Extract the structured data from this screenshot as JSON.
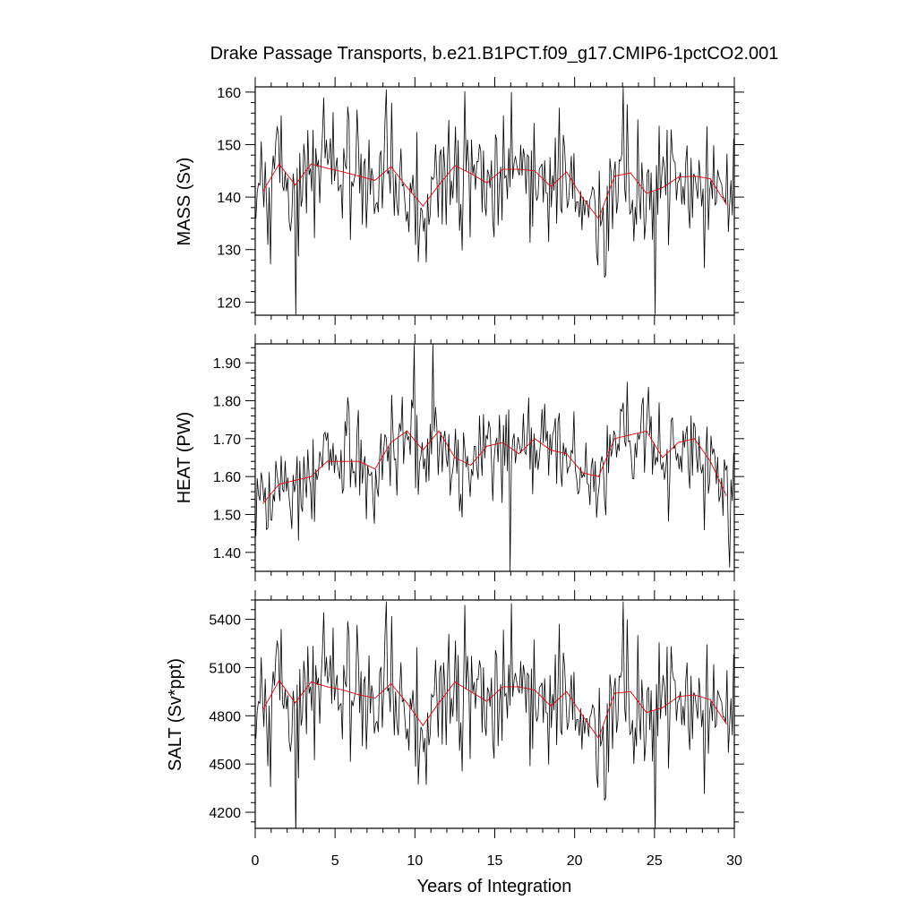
{
  "chart_data": {
    "type": "line",
    "title": "Drake Passage Transports, b.e21.B1PCT.f09_g17.CMIP6-1pctCO2.001",
    "xlabel": "Years of Integration",
    "xlim": [
      0,
      30
    ],
    "xticks": [
      0,
      5,
      10,
      15,
      20,
      25,
      30
    ],
    "xtick_labels": [
      "0",
      "5",
      "10",
      "15",
      "20",
      "25",
      "30"
    ],
    "colors": {
      "monthly": "#000000",
      "annual_mean": "#e8000b"
    },
    "panels": [
      {
        "id": "mass",
        "ylabel": "MASS (Sv)",
        "ylim": [
          117.5,
          161
        ],
        "yticks": [
          120,
          130,
          140,
          150,
          160
        ],
        "ytick_labels": [
          "120",
          "130",
          "140",
          "150",
          "160"
        ],
        "annual_mean": [
          141.2,
          146.3,
          142.3,
          146.3,
          145.5,
          144.8,
          144.0,
          143.2,
          145.8,
          141.9,
          138.3,
          142.3,
          146.0,
          144.5,
          142.7,
          145.3,
          145.3,
          145.0,
          142.0,
          144.8,
          139.8,
          135.9,
          144.0,
          144.6,
          140.7,
          141.8,
          143.8,
          144.0,
          143.5,
          138.6
        ],
        "monthly_stats": {
          "mean": 142.5,
          "amplitude": 9.0
        },
        "monthly_extremes": [
          {
            "x": 2.5,
            "y": 117.3
          },
          {
            "x": 8.2,
            "y": 160.5
          },
          {
            "x": 25.0,
            "y": 117.6
          },
          {
            "x": 16.0,
            "y": 160.0
          }
        ]
      },
      {
        "id": "heat",
        "ylabel": "HEAT (PW)",
        "ylim": [
          1.35,
          1.95
        ],
        "yticks": [
          1.4,
          1.5,
          1.6,
          1.7,
          1.8,
          1.9
        ],
        "ytick_labels": [
          "1.40",
          "1.50",
          "1.60",
          "1.70",
          "1.80",
          "1.90"
        ],
        "annual_mean": [
          1.53,
          1.58,
          1.59,
          1.6,
          1.64,
          1.64,
          1.64,
          1.62,
          1.69,
          1.72,
          1.67,
          1.72,
          1.65,
          1.63,
          1.68,
          1.69,
          1.66,
          1.7,
          1.67,
          1.66,
          1.61,
          1.6,
          1.7,
          1.71,
          1.72,
          1.65,
          1.69,
          1.7,
          1.64,
          1.55
        ],
        "monthly_stats": {
          "mean": 1.65,
          "amplitude": 0.12
        },
        "monthly_extremes": [
          {
            "x": 9.9,
            "y": 1.95
          },
          {
            "x": 11.1,
            "y": 1.95
          },
          {
            "x": 15.9,
            "y": 1.35
          },
          {
            "x": 29.7,
            "y": 1.36
          }
        ]
      },
      {
        "id": "salt",
        "ylabel": "SALT (Sv*ppt)",
        "ylim": [
          4100,
          5520
        ],
        "yticks": [
          4200,
          4500,
          4800,
          5100,
          5400
        ],
        "ytick_labels": [
          "4200",
          "4500",
          "4800",
          "5100",
          "5400"
        ],
        "annual_mean": [
          4840,
          5020,
          4880,
          5010,
          4980,
          4960,
          4930,
          4910,
          5000,
          4880,
          4740,
          4880,
          5010,
          4950,
          4890,
          4980,
          4980,
          4960,
          4860,
          4950,
          4800,
          4660,
          4940,
          4950,
          4820,
          4850,
          4920,
          4930,
          4900,
          4750
        ],
        "monthly_stats": {
          "mean": 4880,
          "amplitude": 310
        },
        "monthly_extremes": [
          {
            "x": 2.5,
            "y": 4030
          },
          {
            "x": 8.2,
            "y": 5510
          },
          {
            "x": 25.0,
            "y": 4040
          },
          {
            "x": 16.0,
            "y": 5500
          }
        ]
      }
    ]
  }
}
